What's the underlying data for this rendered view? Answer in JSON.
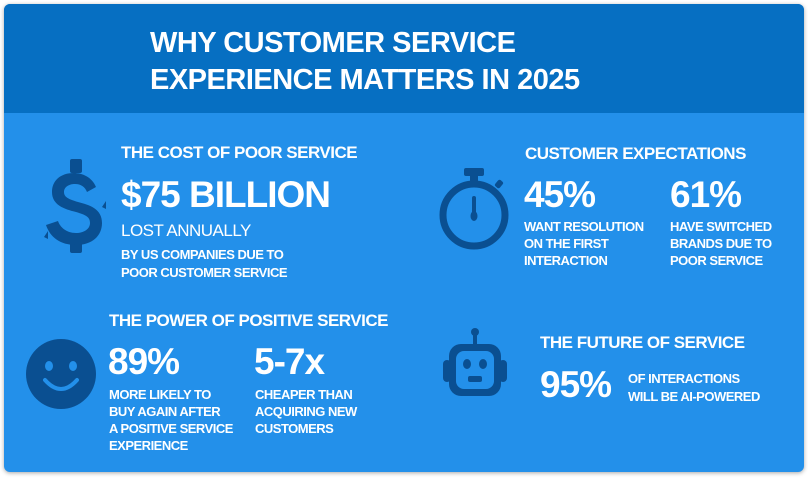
{
  "title": {
    "line1": "WHY CUSTOMER SERVICE",
    "line2": "EXPERIENCE MATTERS IN 2025"
  },
  "colors": {
    "header": "#066fc2",
    "background": "#2390ea",
    "icon": "#0a4f91",
    "text": "#ffffff"
  },
  "cost": {
    "heading": "THE COST OF POOR SERVICE",
    "icon": "dollar-sign-icon",
    "value": "$75 BILLION",
    "sub": "LOST ANNUALLY",
    "desc1": "BY US COMPANIES DUE TO",
    "desc2": "POOR CUSTOMER SERVICE"
  },
  "expectations": {
    "heading": "CUSTOMER EXPECTATIONS",
    "icon": "stopwatch-icon",
    "stats": [
      {
        "value": "45%",
        "lines": [
          "WANT RESOLUTION",
          "ON THE FIRST",
          "INTERACTION"
        ]
      },
      {
        "value": "61%",
        "lines": [
          "HAVE SWITCHED",
          "BRANDS DUE TO",
          "POOR SERVICE"
        ]
      }
    ]
  },
  "positive": {
    "heading": "THE POWER OF POSITIVE SERVICE",
    "icon": "smiley-face-icon",
    "stats": [
      {
        "value": "89%",
        "lines": [
          "MORE LIKELY TO",
          "BUY AGAIN AFTER",
          "A POSITIVE SERVICE",
          "EXPERIENCE"
        ]
      },
      {
        "value": "5-7x",
        "lines": [
          "CHEAPER THAN",
          "ACQUIRING NEW",
          "CUSTOMERS"
        ]
      }
    ]
  },
  "future": {
    "heading": "THE FUTURE OF SERVICE",
    "icon": "robot-icon",
    "value": "95%",
    "lines": [
      "OF INTERACTIONS",
      "WILL BE AI-POWERED"
    ]
  }
}
